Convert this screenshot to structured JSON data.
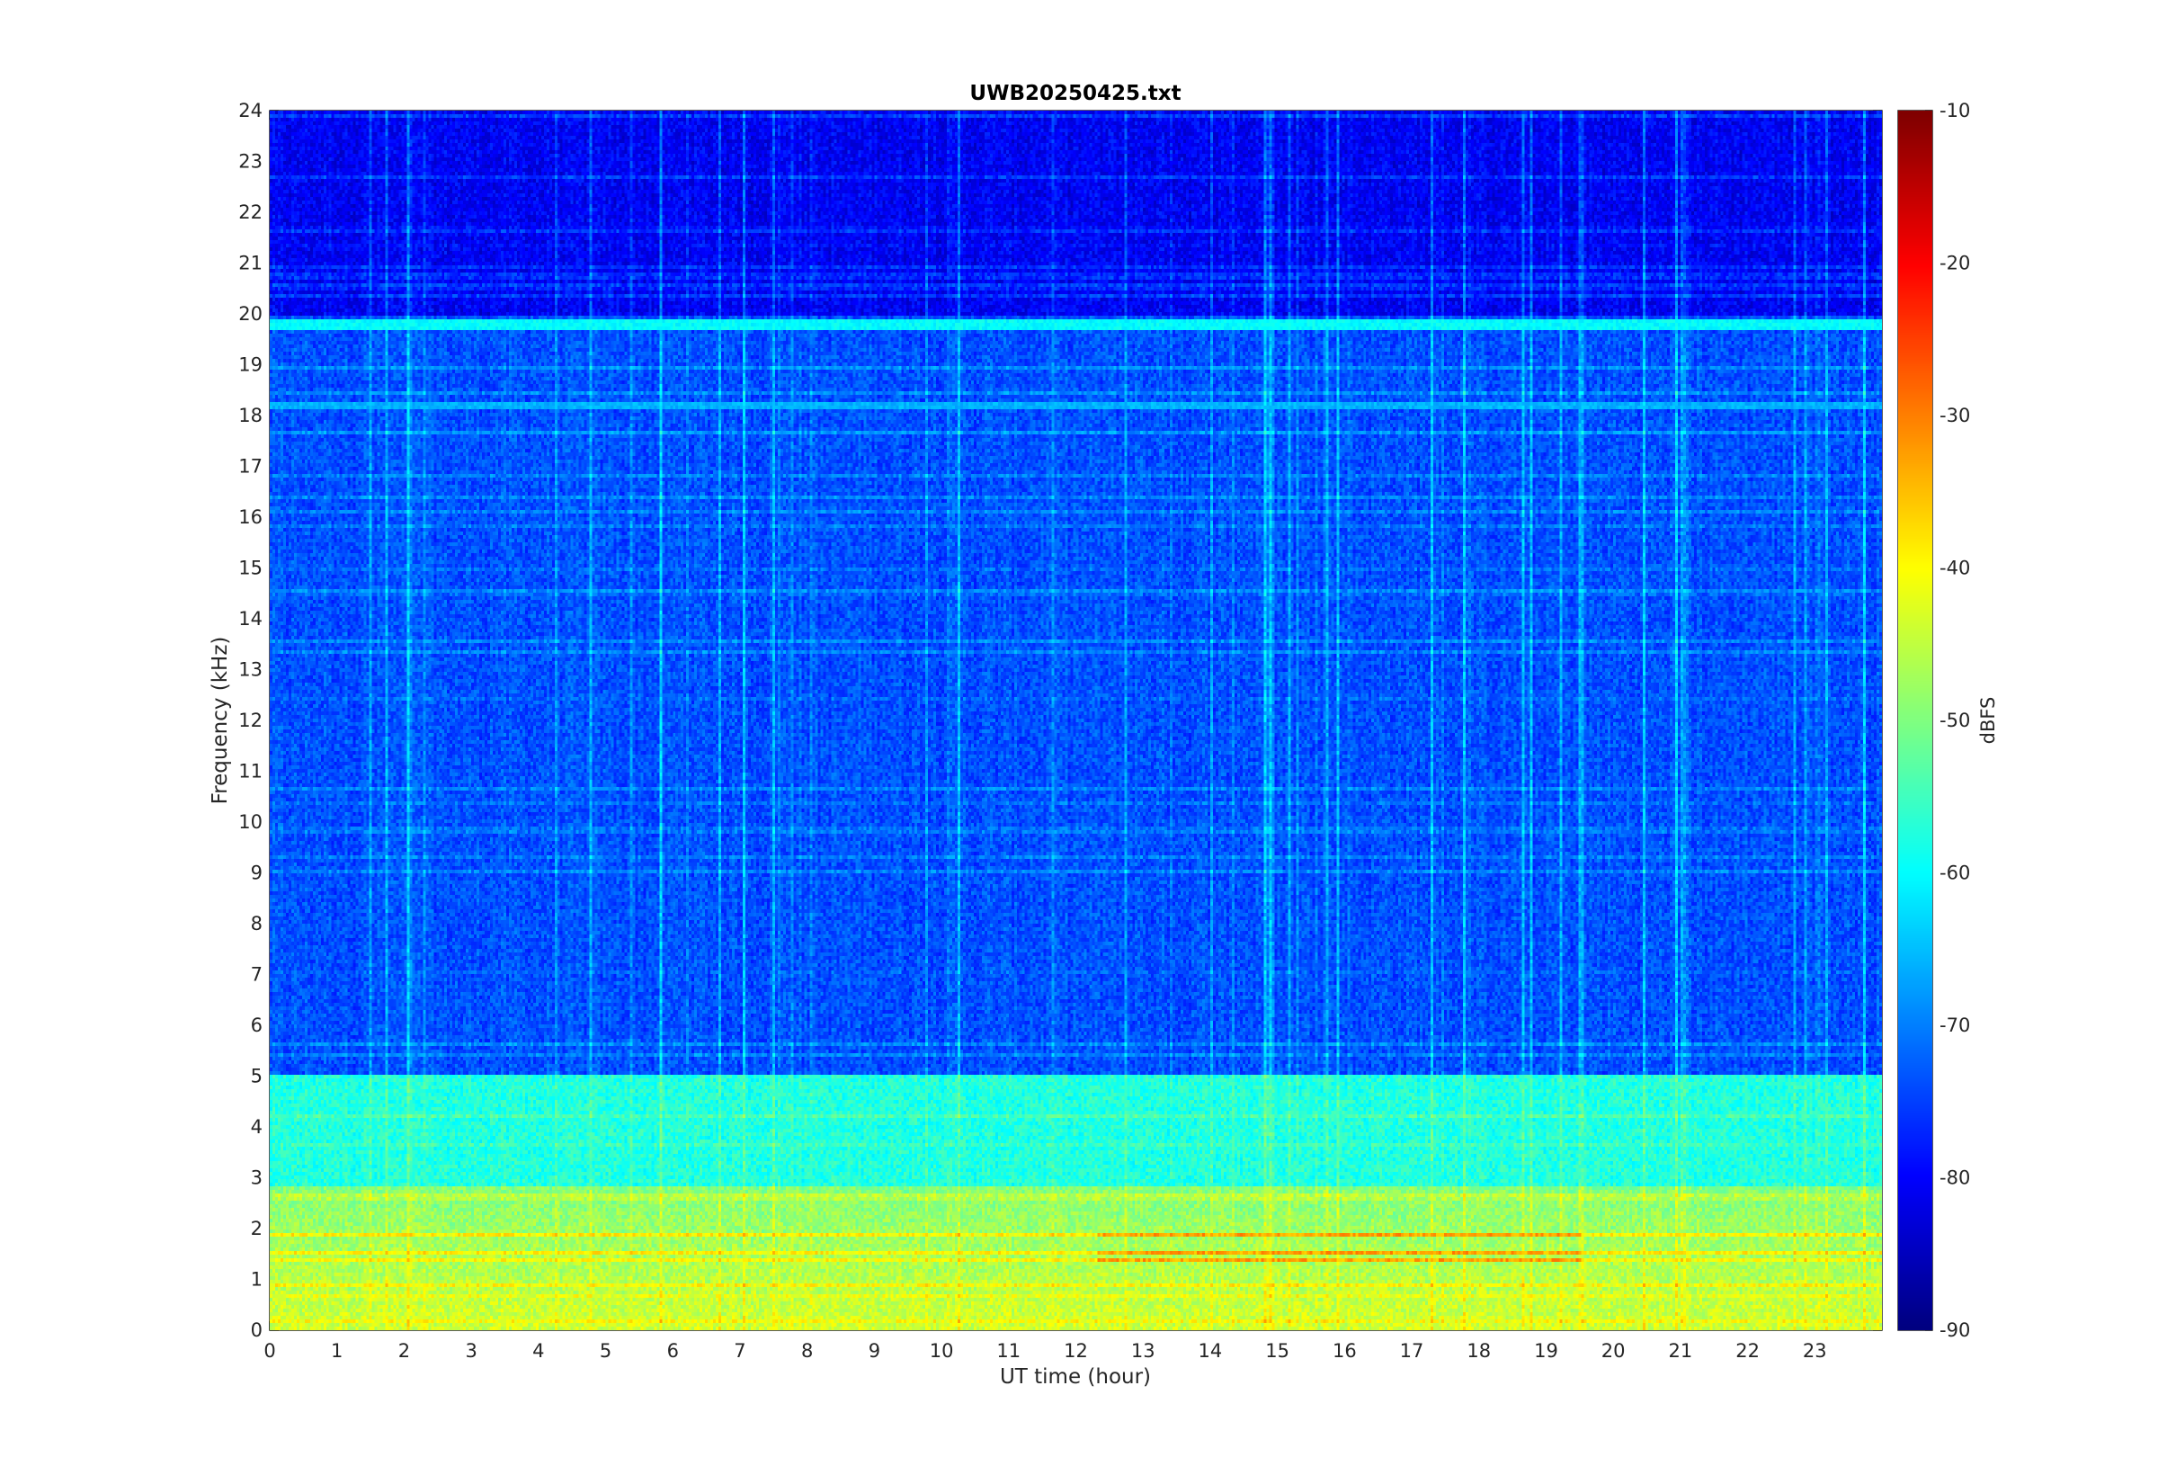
{
  "chart_data": {
    "type": "heatmap",
    "title": "UWB20250425.txt",
    "xlabel": "UT time (hour)",
    "ylabel": "Frequency (kHz)",
    "xlim": [
      0,
      24
    ],
    "ylim": [
      0,
      24
    ],
    "x_ticks": [
      0,
      1,
      2,
      3,
      4,
      5,
      6,
      7,
      8,
      9,
      10,
      11,
      12,
      13,
      14,
      15,
      16,
      17,
      18,
      19,
      20,
      21,
      22,
      23
    ],
    "y_ticks": [
      0,
      1,
      2,
      3,
      4,
      5,
      6,
      7,
      8,
      9,
      10,
      11,
      12,
      13,
      14,
      15,
      16,
      17,
      18,
      19,
      20,
      21,
      22,
      23,
      24
    ],
    "colorbar": {
      "label": "dBFS",
      "range": [
        -90,
        -10
      ],
      "ticks": [
        -90,
        -80,
        -70,
        -60,
        -50,
        -40,
        -30,
        -20,
        -10
      ],
      "colormap": "jet"
    },
    "features": [
      {
        "kind": "band",
        "freq_khz": [
          0,
          2.8
        ],
        "level_dbfs": -47
      },
      {
        "kind": "band",
        "freq_khz": [
          2.8,
          5
        ],
        "level_dbfs": -58
      },
      {
        "kind": "band",
        "freq_khz": [
          5,
          20
        ],
        "level_dbfs": -75
      },
      {
        "kind": "band",
        "freq_khz": [
          20,
          24
        ],
        "level_dbfs": -82
      },
      {
        "kind": "line",
        "freq_khz": 19.8,
        "level_dbfs": -60
      },
      {
        "kind": "line",
        "freq_khz": 18.2,
        "level_dbfs": -66
      },
      {
        "kind": "hot_spot",
        "time_h": [
          12.3,
          19.5
        ],
        "freq_khz": [
          0.9,
          1.9
        ],
        "level_dbfs": -33
      }
    ]
  }
}
